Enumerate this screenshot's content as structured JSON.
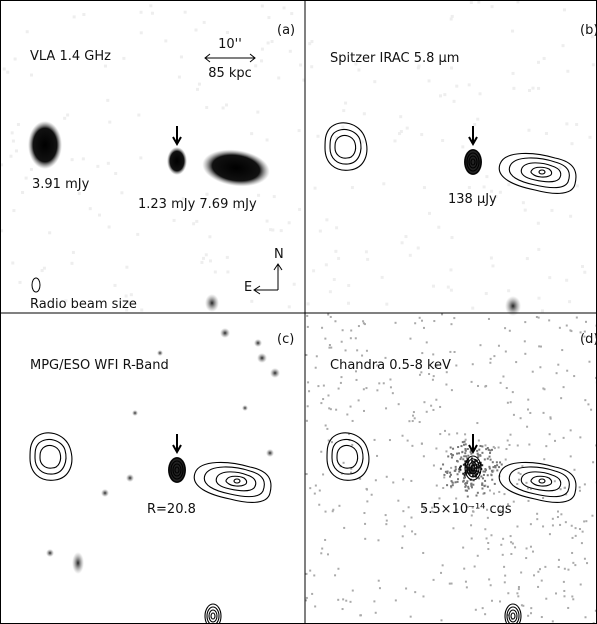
{
  "panels": [
    {
      "label": "(a)",
      "title": "VLA 1.4 GHz",
      "scale_angle": "10''",
      "scale_length": "85 kpc",
      "flux_left": "3.91 mJy",
      "flux_pair": "1.23 mJy 7.69 mJy",
      "north": "N",
      "east": "E",
      "beam": "Radio beam size"
    },
    {
      "label": "(b)",
      "title": "Spitzer IRAC 5.8 μm",
      "flux": "138 μJy"
    },
    {
      "label": "(c)",
      "title": "MPG/ESO WFI R-Band",
      "flux": "R=20.8"
    },
    {
      "label": "(d)",
      "title": "Chandra 0.5-8 keV",
      "flux": "5.5×10⁻¹⁴ cgs"
    }
  ]
}
